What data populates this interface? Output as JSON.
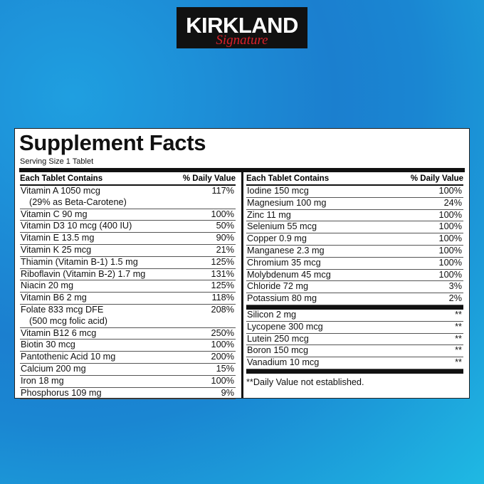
{
  "logo": {
    "brand": "KIRKLAND",
    "line": "Signature"
  },
  "label": {
    "title": "Supplement Facts",
    "serving": "Serving Size 1 Tablet",
    "left": {
      "header": [
        "Each Tablet Contains",
        "% Daily Value"
      ],
      "rows": [
        {
          "name": "Vitamin A 1050 mcg",
          "note": "(29% as Beta-Carotene)",
          "dv": "117%"
        },
        {
          "name": "Vitamin C 90 mg",
          "dv": "100%"
        },
        {
          "name": "Vitamin D3 10 mcg (400 IU)",
          "dv": "50%"
        },
        {
          "name": "Vitamin E 13.5 mg",
          "dv": "90%"
        },
        {
          "name": "Vitamin K 25 mcg",
          "dv": "21%"
        },
        {
          "name": "Thiamin (Vitamin B-1) 1.5 mg",
          "dv": "125%"
        },
        {
          "name": "Riboflavin (Vitamin B-2) 1.7 mg",
          "dv": "131%"
        },
        {
          "name": "Niacin 20 mg",
          "dv": "125%"
        },
        {
          "name": "Vitamin B6 2 mg",
          "dv": "118%"
        },
        {
          "name": "Folate 833 mcg DFE",
          "note": "(500 mcg folic acid)",
          "dv": "208%"
        },
        {
          "name": "Vitamin B12 6 mcg",
          "dv": "250%"
        },
        {
          "name": "Biotin 30 mcg",
          "dv": "100%"
        },
        {
          "name": "Pantothenic Acid 10 mg",
          "dv": "200%"
        },
        {
          "name": "Calcium 200 mg",
          "dv": "15%"
        },
        {
          "name": "Iron 18 mg",
          "dv": "100%"
        },
        {
          "name": "Phosphorus 109 mg",
          "dv": "9%"
        }
      ]
    },
    "right": {
      "header": [
        "Each Tablet Contains",
        "% Daily Value"
      ],
      "rows": [
        {
          "name": "Iodine 150 mcg",
          "dv": "100%"
        },
        {
          "name": "Magnesium 100 mg",
          "dv": "24%"
        },
        {
          "name": "Zinc 11 mg",
          "dv": "100%"
        },
        {
          "name": "Selenium 55 mcg",
          "dv": "100%"
        },
        {
          "name": "Copper 0.9 mg",
          "dv": "100%"
        },
        {
          "name": "Manganese 2.3 mg",
          "dv": "100%"
        },
        {
          "name": "Chromium 35 mcg",
          "dv": "100%"
        },
        {
          "name": "Molybdenum 45 mcg",
          "dv": "100%"
        },
        {
          "name": "Chloride 72 mg",
          "dv": "3%"
        },
        {
          "name": "Potassium 80 mg",
          "dv": "2%"
        }
      ],
      "other_rows": [
        {
          "name": "Silicon 2 mg",
          "dv": "**"
        },
        {
          "name": "Lycopene 300 mcg",
          "dv": "**"
        },
        {
          "name": "Lutein 250 mcg",
          "dv": "**"
        },
        {
          "name": "Boron 150 mcg",
          "dv": "**"
        },
        {
          "name": "Vanadium 10 mcg",
          "dv": "**"
        }
      ],
      "footnote": "**Daily Value not established."
    }
  }
}
